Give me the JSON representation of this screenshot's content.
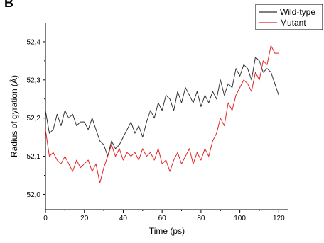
{
  "panel_label": "B",
  "chart_data": {
    "type": "line",
    "title": "",
    "xlabel": "Time (ps)",
    "ylabel": "Radius of gyration (Å)",
    "xlim": [
      0,
      125
    ],
    "ylim": [
      51.96,
      52.45
    ],
    "xticks": [
      0,
      20,
      40,
      60,
      80,
      100,
      120
    ],
    "xtick_labels": [
      "0",
      "20",
      "40",
      "60",
      "80",
      "100",
      "120"
    ],
    "yticks": [
      52.0,
      52.1,
      52.2,
      52.3,
      52.4
    ],
    "ytick_labels": [
      "52,0",
      "52,1",
      "52,2",
      "52,3",
      "52,4"
    ],
    "grid": false,
    "legend_position": "top-right",
    "series": [
      {
        "name": "Wild-type",
        "color": "#333333",
        "x": [
          0,
          2,
          4,
          6,
          8,
          10,
          12,
          14,
          16,
          18,
          20,
          22,
          24,
          26,
          28,
          30,
          32,
          34,
          36,
          38,
          40,
          42,
          44,
          46,
          48,
          50,
          52,
          54,
          56,
          58,
          60,
          62,
          64,
          66,
          68,
          70,
          72,
          74,
          76,
          78,
          80,
          82,
          84,
          86,
          88,
          90,
          92,
          94,
          96,
          98,
          100,
          102,
          104,
          106,
          108,
          110,
          112,
          114,
          116,
          118,
          120
        ],
        "y": [
          52.22,
          52.16,
          52.17,
          52.21,
          52.18,
          52.22,
          52.2,
          52.21,
          52.18,
          52.19,
          52.19,
          52.17,
          52.2,
          52.17,
          52.14,
          52.13,
          52.1,
          52.14,
          52.12,
          52.13,
          52.15,
          52.17,
          52.19,
          52.16,
          52.18,
          52.15,
          52.19,
          52.22,
          52.2,
          52.24,
          52.22,
          52.26,
          52.25,
          52.22,
          52.27,
          52.24,
          52.28,
          52.26,
          52.24,
          52.27,
          52.23,
          52.26,
          52.24,
          52.27,
          52.25,
          52.3,
          52.26,
          52.29,
          52.28,
          52.33,
          52.31,
          52.34,
          52.33,
          52.3,
          52.36,
          52.35,
          52.32,
          52.33,
          52.32,
          52.29,
          52.26
        ]
      },
      {
        "name": "Mutant",
        "color": "#e32424",
        "x": [
          0,
          2,
          4,
          6,
          8,
          10,
          12,
          14,
          16,
          18,
          20,
          22,
          24,
          26,
          28,
          30,
          32,
          34,
          36,
          38,
          40,
          42,
          44,
          46,
          48,
          50,
          52,
          54,
          56,
          58,
          60,
          62,
          64,
          66,
          68,
          70,
          72,
          74,
          76,
          78,
          80,
          82,
          84,
          86,
          88,
          90,
          92,
          94,
          96,
          98,
          100,
          102,
          104,
          106,
          108,
          110,
          112,
          114,
          116,
          118,
          120
        ],
        "y": [
          52.17,
          52.1,
          52.11,
          52.09,
          52.08,
          52.1,
          52.08,
          52.06,
          52.09,
          52.07,
          52.08,
          52.09,
          52.06,
          52.08,
          52.03,
          52.07,
          52.1,
          52.13,
          52.1,
          52.12,
          52.09,
          52.11,
          52.1,
          52.11,
          52.09,
          52.12,
          52.1,
          52.11,
          52.09,
          52.12,
          52.08,
          52.09,
          52.06,
          52.09,
          52.11,
          52.08,
          52.1,
          52.12,
          52.08,
          52.11,
          52.09,
          52.12,
          52.1,
          52.14,
          52.16,
          52.2,
          52.18,
          52.24,
          52.22,
          52.26,
          52.28,
          52.3,
          52.29,
          52.27,
          52.32,
          52.3,
          52.35,
          52.34,
          52.39,
          52.37,
          52.37
        ]
      }
    ]
  }
}
